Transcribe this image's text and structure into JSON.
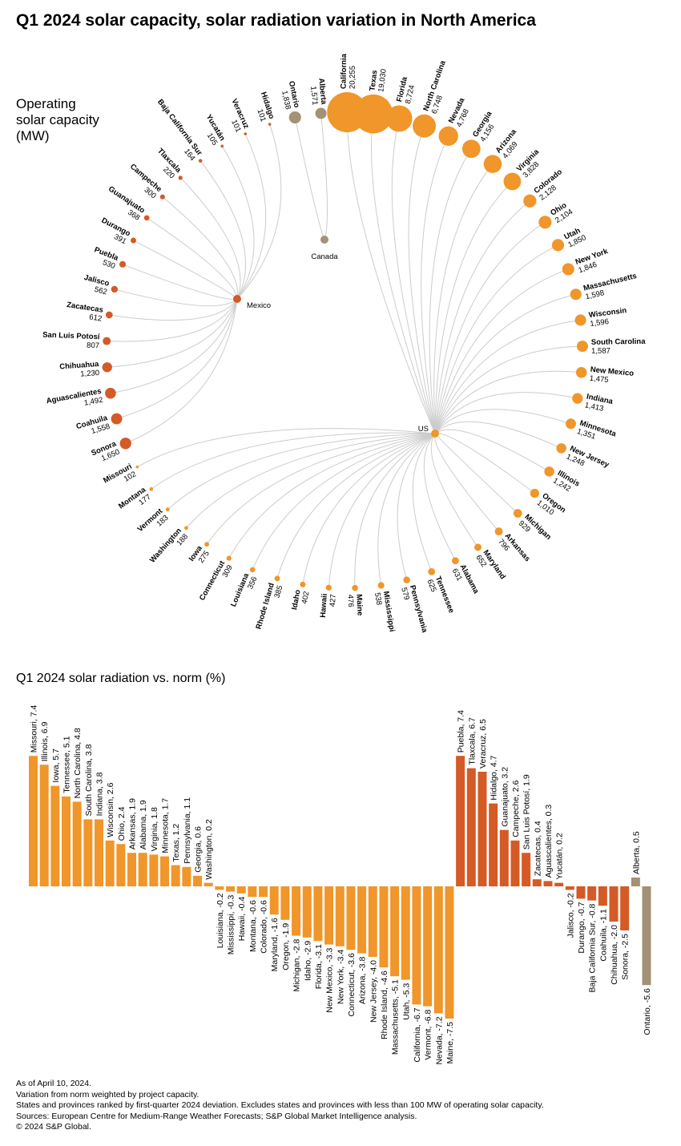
{
  "title": "Q1 2024 solar capacity, solar radiation variation in North America",
  "capacity_title": [
    "Operating",
    "solar capacity",
    "(MW)"
  ],
  "bar_title": "Q1 2024 solar radiation vs. norm (%)",
  "notes": [
    "As of April 10, 2024.",
    "Variation from norm weighted by project capacity.",
    "States and provinces ranked by first-quarter 2024 deviation. Excludes states and provinces with less than 100 MW of operating solar capacity.",
    "Sources: European Centre for Medium-Range Weather Forecasts; S&P Global Market Intelligence analysis.",
    "© 2024 S&P Global."
  ],
  "colors": {
    "US": "#F0962A",
    "Mexico": "#D45A26",
    "Canada": "#A39176",
    "link": "#cccccc"
  },
  "hubs": {
    "US": "US",
    "Mexico": "Mexico",
    "Canada": "Canada"
  },
  "chart_data": [
    {
      "type": "radial-dendrogram",
      "title": "Operating solar capacity (MW)",
      "nodes": [
        {
          "name": "Ontario",
          "capacity": 1838,
          "country": "Canada"
        },
        {
          "name": "Alberta",
          "capacity": 1571,
          "country": "Canada"
        },
        {
          "name": "California",
          "capacity": 20255,
          "country": "US"
        },
        {
          "name": "Texas",
          "capacity": 19030,
          "country": "US"
        },
        {
          "name": "Florida",
          "capacity": 8724,
          "country": "US"
        },
        {
          "name": "North Carolina",
          "capacity": 6748,
          "country": "US"
        },
        {
          "name": "Nevada",
          "capacity": 4768,
          "country": "US"
        },
        {
          "name": "Georgia",
          "capacity": 4156,
          "country": "US"
        },
        {
          "name": "Arizona",
          "capacity": 4069,
          "country": "US"
        },
        {
          "name": "Virginia",
          "capacity": 3828,
          "country": "US"
        },
        {
          "name": "Colorado",
          "capacity": 2128,
          "country": "US"
        },
        {
          "name": "Ohio",
          "capacity": 2104,
          "country": "US"
        },
        {
          "name": "Utah",
          "capacity": 1850,
          "country": "US"
        },
        {
          "name": "New York",
          "capacity": 1846,
          "country": "US"
        },
        {
          "name": "Massachusetts",
          "capacity": 1598,
          "country": "US"
        },
        {
          "name": "Wisconsin",
          "capacity": 1596,
          "country": "US"
        },
        {
          "name": "South Carolina",
          "capacity": 1587,
          "country": "US"
        },
        {
          "name": "New Mexico",
          "capacity": 1475,
          "country": "US"
        },
        {
          "name": "Indiana",
          "capacity": 1413,
          "country": "US"
        },
        {
          "name": "Minnesota",
          "capacity": 1351,
          "country": "US"
        },
        {
          "name": "New Jersey",
          "capacity": 1248,
          "country": "US"
        },
        {
          "name": "Illinois",
          "capacity": 1242,
          "country": "US"
        },
        {
          "name": "Oregon",
          "capacity": 1010,
          "country": "US"
        },
        {
          "name": "Michigan",
          "capacity": 929,
          "country": "US"
        },
        {
          "name": "Arkansas",
          "capacity": 796,
          "country": "US"
        },
        {
          "name": "Maryland",
          "capacity": 652,
          "country": "US"
        },
        {
          "name": "Alabama",
          "capacity": 631,
          "country": "US"
        },
        {
          "name": "Tennessee",
          "capacity": 625,
          "country": "US"
        },
        {
          "name": "Pennsylvania",
          "capacity": 579,
          "country": "US"
        },
        {
          "name": "Mississippi",
          "capacity": 538,
          "country": "US"
        },
        {
          "name": "Maine",
          "capacity": 476,
          "country": "US"
        },
        {
          "name": "Hawaii",
          "capacity": 427,
          "country": "US"
        },
        {
          "name": "Idaho",
          "capacity": 402,
          "country": "US"
        },
        {
          "name": "Rhode Island",
          "capacity": 385,
          "country": "US"
        },
        {
          "name": "Louisiana",
          "capacity": 356,
          "country": "US"
        },
        {
          "name": "Connecticut",
          "capacity": 309,
          "country": "US"
        },
        {
          "name": "Iowa",
          "capacity": 275,
          "country": "US"
        },
        {
          "name": "Washington",
          "capacity": 188,
          "country": "US"
        },
        {
          "name": "Vermont",
          "capacity": 183,
          "country": "US"
        },
        {
          "name": "Montana",
          "capacity": 177,
          "country": "US"
        },
        {
          "name": "Missouri",
          "capacity": 102,
          "country": "US"
        },
        {
          "name": "Sonora",
          "capacity": 1650,
          "country": "Mexico"
        },
        {
          "name": "Coahuila",
          "capacity": 1558,
          "country": "Mexico"
        },
        {
          "name": "Aguascalientes",
          "capacity": 1492,
          "country": "Mexico"
        },
        {
          "name": "Chihuahua",
          "capacity": 1230,
          "country": "Mexico"
        },
        {
          "name": "San Luis Potosí",
          "capacity": 807,
          "country": "Mexico"
        },
        {
          "name": "Zacatecas",
          "capacity": 612,
          "country": "Mexico"
        },
        {
          "name": "Jalisco",
          "capacity": 562,
          "country": "Mexico"
        },
        {
          "name": "Puebla",
          "capacity": 530,
          "country": "Mexico"
        },
        {
          "name": "Durango",
          "capacity": 391,
          "country": "Mexico"
        },
        {
          "name": "Guanajuato",
          "capacity": 368,
          "country": "Mexico"
        },
        {
          "name": "Campeche",
          "capacity": 300,
          "country": "Mexico"
        },
        {
          "name": "Tlaxcala",
          "capacity": 220,
          "country": "Mexico"
        },
        {
          "name": "Baja California Sur",
          "capacity": 164,
          "country": "Mexico"
        },
        {
          "name": "Yucatán",
          "capacity": 105,
          "country": "Mexico"
        },
        {
          "name": "Veracruz",
          "capacity": 101,
          "country": "Mexico"
        },
        {
          "name": "Hidalgo",
          "capacity": 101,
          "country": "Mexico"
        }
      ]
    },
    {
      "type": "bar",
      "title": "Q1 2024 solar radiation vs. norm (%)",
      "bars": [
        {
          "name": "Missouri",
          "value": 7.4,
          "country": "US"
        },
        {
          "name": "Illinois",
          "value": 6.9,
          "country": "US"
        },
        {
          "name": "Iowa",
          "value": 5.7,
          "country": "US"
        },
        {
          "name": "Tennessee",
          "value": 5.1,
          "country": "US"
        },
        {
          "name": "North Carolina",
          "value": 4.8,
          "country": "US"
        },
        {
          "name": "South Carolina",
          "value": 3.8,
          "country": "US"
        },
        {
          "name": "Indiana",
          "value": 3.8,
          "country": "US"
        },
        {
          "name": "Wisconsin",
          "value": 2.6,
          "country": "US"
        },
        {
          "name": "Ohio",
          "value": 2.4,
          "country": "US"
        },
        {
          "name": "Arkansas",
          "value": 1.9,
          "country": "US"
        },
        {
          "name": "Alabama",
          "value": 1.9,
          "country": "US"
        },
        {
          "name": "Virginia",
          "value": 1.8,
          "country": "US"
        },
        {
          "name": "Minnesota",
          "value": 1.7,
          "country": "US"
        },
        {
          "name": "Texas",
          "value": 1.2,
          "country": "US"
        },
        {
          "name": "Pennsylvania",
          "value": 1.1,
          "country": "US"
        },
        {
          "name": "Georgia",
          "value": 0.6,
          "country": "US"
        },
        {
          "name": "Washington",
          "value": 0.2,
          "country": "US"
        },
        {
          "name": "Louisiana",
          "value": -0.2,
          "country": "US"
        },
        {
          "name": "Mississippi",
          "value": -0.3,
          "country": "US"
        },
        {
          "name": "Hawaii",
          "value": -0.4,
          "country": "US"
        },
        {
          "name": "Montana",
          "value": -0.6,
          "country": "US"
        },
        {
          "name": "Colorado",
          "value": -0.6,
          "country": "US"
        },
        {
          "name": "Maryland",
          "value": -1.6,
          "country": "US"
        },
        {
          "name": "Oregon",
          "value": -1.9,
          "country": "US"
        },
        {
          "name": "Michigan",
          "value": -2.8,
          "country": "US"
        },
        {
          "name": "Idaho",
          "value": -2.9,
          "country": "US"
        },
        {
          "name": "Florida",
          "value": -3.1,
          "country": "US"
        },
        {
          "name": "New Mexico",
          "value": -3.3,
          "country": "US"
        },
        {
          "name": "New York",
          "value": -3.4,
          "country": "US"
        },
        {
          "name": "Connecticut",
          "value": -3.6,
          "country": "US"
        },
        {
          "name": "Arizona",
          "value": -3.8,
          "country": "US"
        },
        {
          "name": "New Jersey",
          "value": -4.0,
          "country": "US"
        },
        {
          "name": "Rhode Island",
          "value": -4.6,
          "country": "US"
        },
        {
          "name": "Massachusetts",
          "value": -5.1,
          "country": "US"
        },
        {
          "name": "Utah",
          "value": -5.3,
          "country": "US"
        },
        {
          "name": "California",
          "value": -6.7,
          "country": "US"
        },
        {
          "name": "Vermont",
          "value": -6.8,
          "country": "US"
        },
        {
          "name": "Nevada",
          "value": -7.2,
          "country": "US"
        },
        {
          "name": "Maine",
          "value": -7.5,
          "country": "US"
        },
        {
          "name": "Puebla",
          "value": 7.4,
          "country": "Mexico"
        },
        {
          "name": "Tlaxcala",
          "value": 6.7,
          "country": "Mexico"
        },
        {
          "name": "Veracruz",
          "value": 6.5,
          "country": "Mexico"
        },
        {
          "name": "Hidalgo",
          "value": 4.7,
          "country": "Mexico"
        },
        {
          "name": "Guanajuato",
          "value": 3.2,
          "country": "Mexico"
        },
        {
          "name": "Campeche",
          "value": 2.6,
          "country": "Mexico"
        },
        {
          "name": "San Luis Potosí",
          "value": 1.9,
          "country": "Mexico"
        },
        {
          "name": "Zacatecas",
          "value": 0.4,
          "country": "Mexico"
        },
        {
          "name": "Aguascalientes",
          "value": 0.3,
          "country": "Mexico"
        },
        {
          "name": "Yucatán",
          "value": 0.2,
          "country": "Mexico"
        },
        {
          "name": "Jalisco",
          "value": -0.2,
          "country": "Mexico"
        },
        {
          "name": "Durango",
          "value": -0.7,
          "country": "Mexico"
        },
        {
          "name": "Baja California Sur",
          "value": -0.8,
          "country": "Mexico"
        },
        {
          "name": "Coahuila",
          "value": -1.1,
          "country": "Mexico"
        },
        {
          "name": "Chihuahua",
          "value": -2.0,
          "country": "Mexico"
        },
        {
          "name": "Sonora",
          "value": -2.5,
          "country": "Mexico"
        },
        {
          "name": "Alberta",
          "value": 0.5,
          "country": "Canada"
        },
        {
          "name": "Ontario",
          "value": -5.6,
          "country": "Canada"
        }
      ]
    }
  ]
}
